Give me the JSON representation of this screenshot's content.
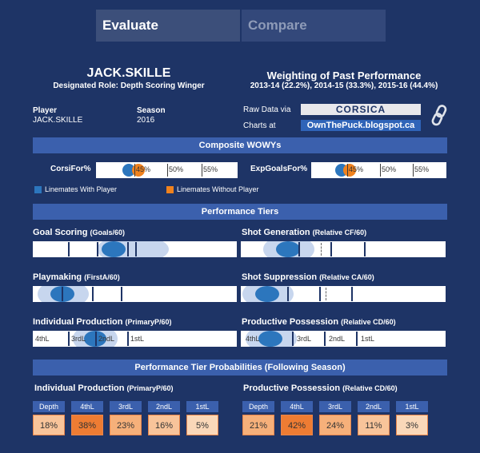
{
  "tabs": {
    "evaluate": "Evaluate",
    "compare": "Compare"
  },
  "player_header": {
    "name": "JACK.SKILLE",
    "role": "Designated Role: Depth Scoring Winger"
  },
  "weighting": {
    "title": "Weighting of Past Performance",
    "detail": "2013-14 (22.2%), 2014-15 (33.3%), 2015-16 (44.4%)"
  },
  "info": {
    "player_label": "Player",
    "player_value": "JACK.SKILLE",
    "season_label": "Season",
    "season_value": "2016"
  },
  "sources": {
    "raw_label": "Raw Data via",
    "raw_logo": "CORSICA",
    "charts_label": "Charts at",
    "charts_link": "OwnThePuck.blogspot.ca",
    "link_icon": "chain-link-icon"
  },
  "composite": {
    "header": "Composite WOWYs",
    "corsi": {
      "label": "CorsiFor%",
      "ticks": [
        "45%",
        "50%",
        "55%"
      ],
      "with_player": 44.1,
      "without_player": 45.6
    },
    "expgoals": {
      "label": "ExpGoalsFor%",
      "ticks": [
        "45%",
        "50%",
        "55%"
      ],
      "with_player": 44.2,
      "without_player": 45.4
    },
    "legend": {
      "with": "Linemates With Player",
      "without": "Linemates Without Player"
    },
    "colors": {
      "with": "#2c76bd",
      "without": "#f0821e"
    }
  },
  "tiers": {
    "header": "Performance Tiers",
    "goal_scoring": {
      "title": "Goal Scoring",
      "unit": "(Goals/60)"
    },
    "shot_generation": {
      "title": "Shot Generation",
      "unit": "(Relative CF/60)"
    },
    "playmaking": {
      "title": "Playmaking",
      "unit": "(FirstA/60)"
    },
    "shot_suppression": {
      "title": "Shot Suppression",
      "unit": "(Relative CA/60)"
    },
    "individual_production": {
      "title": "Individual Production",
      "unit": "(PrimaryP/60)",
      "labels": [
        "4thL",
        "3rdL",
        "2ndL",
        "1stL"
      ]
    },
    "productive_possession": {
      "title": "Productive Possession",
      "unit": "(Relative CD/60)",
      "labels": [
        "4thL",
        "3rdL",
        "2ndL",
        "1stL"
      ]
    }
  },
  "probabilities": {
    "header": "Performance Tier Probabilities (Following Season)",
    "individual": {
      "title": "Individual Production",
      "unit": "(PrimaryP/60)",
      "cols": [
        "Depth",
        "4thL",
        "3rdL",
        "2ndL",
        "1stL"
      ],
      "values": [
        "18%",
        "38%",
        "23%",
        "16%",
        "5%"
      ]
    },
    "possession": {
      "title": "Productive Possession",
      "unit": "(Relative CD/60)",
      "cols": [
        "Depth",
        "4thL",
        "3rdL",
        "2ndL",
        "1stL"
      ],
      "values": [
        "21%",
        "42%",
        "24%",
        "11%",
        "3%"
      ]
    }
  }
}
